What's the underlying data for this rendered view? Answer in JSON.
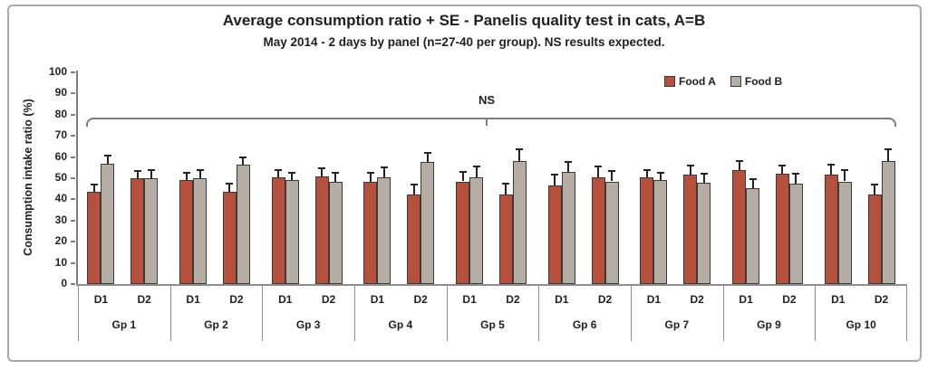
{
  "window": {
    "background": "#ffffff",
    "border_color": "#a9a9a9"
  },
  "chart_data": {
    "type": "bar",
    "title": "Average consumption ratio + SE - Panelis quality test in cats, A=B",
    "subtitle": "May 2014 - 2 days by panel (n=27-40 per group). NS results expected.",
    "ylabel": "Consumption intake ratio (%)",
    "ylim": [
      0,
      100
    ],
    "ytick_step": 10,
    "grid": false,
    "error_bar": "+SE",
    "legend_position": "top-right",
    "annotation": {
      "label": "NS",
      "spans": "all groups"
    },
    "legend": [
      {
        "id": "food_a",
        "label": "Food A",
        "color": "#b5503d"
      },
      {
        "id": "food_b",
        "label": "Food B",
        "color": "#b5aca3"
      }
    ],
    "colors": {
      "food_a": "#b5503d",
      "food_b": "#b5aca3",
      "bar_border": "#3a3a3a",
      "axis": "#7d7d7d",
      "bracket": "#7d7d7d",
      "text": "#1f1f1f"
    },
    "groups": [
      {
        "label": "Gp 1",
        "days": [
          {
            "label": "D1",
            "food_a": 43.5,
            "food_a_se": 3.5,
            "food_b": 57.0,
            "food_b_se": 3.5
          },
          {
            "label": "D2",
            "food_a": 50.0,
            "food_a_se": 3.5,
            "food_b": 50.0,
            "food_b_se": 4.0
          }
        ]
      },
      {
        "label": "Gp 2",
        "days": [
          {
            "label": "D1",
            "food_a": 49.0,
            "food_a_se": 3.5,
            "food_b": 50.0,
            "food_b_se": 4.0
          },
          {
            "label": "D2",
            "food_a": 43.5,
            "food_a_se": 4.0,
            "food_b": 56.5,
            "food_b_se": 3.5
          }
        ]
      },
      {
        "label": "Gp 3",
        "days": [
          {
            "label": "D1",
            "food_a": 50.5,
            "food_a_se": 3.5,
            "food_b": 49.0,
            "food_b_se": 3.5
          },
          {
            "label": "D2",
            "food_a": 51.0,
            "food_a_se": 3.5,
            "food_b": 48.5,
            "food_b_se": 4.0
          }
        ]
      },
      {
        "label": "Gp 4",
        "days": [
          {
            "label": "D1",
            "food_a": 48.5,
            "food_a_se": 4.0,
            "food_b": 50.5,
            "food_b_se": 4.5
          },
          {
            "label": "D2",
            "food_a": 42.5,
            "food_a_se": 4.5,
            "food_b": 57.5,
            "food_b_se": 4.5
          }
        ]
      },
      {
        "label": "Gp 5",
        "days": [
          {
            "label": "D1",
            "food_a": 48.5,
            "food_a_se": 4.5,
            "food_b": 50.5,
            "food_b_se": 5.0
          },
          {
            "label": "D2",
            "food_a": 42.5,
            "food_a_se": 5.0,
            "food_b": 58.0,
            "food_b_se": 5.5
          }
        ]
      },
      {
        "label": "Gp 6",
        "days": [
          {
            "label": "D1",
            "food_a": 46.5,
            "food_a_se": 5.0,
            "food_b": 53.0,
            "food_b_se": 4.5
          },
          {
            "label": "D2",
            "food_a": 50.5,
            "food_a_se": 5.0,
            "food_b": 48.5,
            "food_b_se": 5.0
          }
        ]
      },
      {
        "label": "Gp 7",
        "days": [
          {
            "label": "D1",
            "food_a": 50.5,
            "food_a_se": 3.5,
            "food_b": 49.0,
            "food_b_se": 3.5
          },
          {
            "label": "D2",
            "food_a": 51.5,
            "food_a_se": 4.5,
            "food_b": 48.0,
            "food_b_se": 4.0
          }
        ]
      },
      {
        "label": "Gp 9",
        "days": [
          {
            "label": "D1",
            "food_a": 54.0,
            "food_a_se": 4.0,
            "food_b": 45.5,
            "food_b_se": 4.0
          },
          {
            "label": "D2",
            "food_a": 52.0,
            "food_a_se": 4.0,
            "food_b": 47.5,
            "food_b_se": 4.5
          }
        ]
      },
      {
        "label": "Gp 10",
        "days": [
          {
            "label": "D1",
            "food_a": 51.5,
            "food_a_se": 5.0,
            "food_b": 48.5,
            "food_b_se": 5.5
          },
          {
            "label": "D2",
            "food_a": 42.5,
            "food_a_se": 4.5,
            "food_b": 58.0,
            "food_b_se": 5.5
          }
        ]
      }
    ]
  }
}
